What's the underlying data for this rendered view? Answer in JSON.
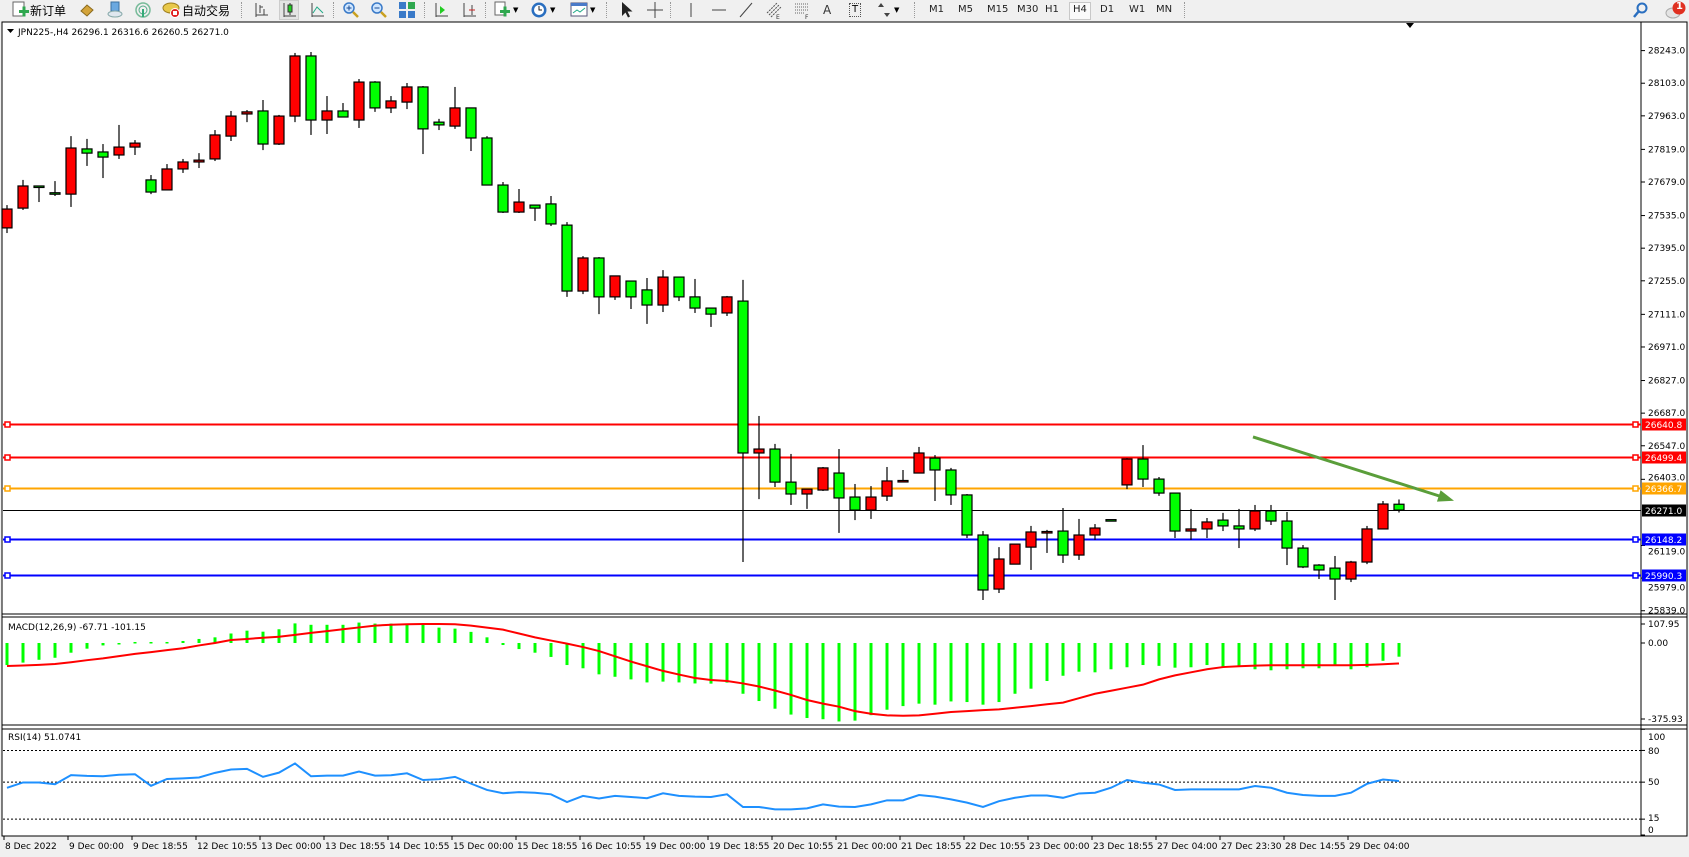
{
  "toolbar": {
    "new_order": "新订单",
    "auto_trading": "自动交易",
    "text_tool": "A",
    "text_label_tool": "T",
    "timeframes": [
      "M1",
      "M5",
      "M15",
      "M30",
      "H1",
      "H4",
      "D1",
      "W1",
      "MN"
    ],
    "active_timeframe": "H4",
    "notification_count": "1"
  },
  "chart": {
    "header": "JPN225-,H4  26296.1 26316.6 26260.5 26271.0",
    "colors": {
      "up": "#ff0000",
      "down": "#00ff00",
      "wick": "#000000",
      "background": "#ffffff"
    },
    "price_ticks": [
      "28243.0",
      "28103.0",
      "27963.0",
      "27819.0",
      "27679.0",
      "27535.0",
      "27395.0",
      "27255.0",
      "27111.0",
      "26971.0",
      "26827.0",
      "26687.0",
      "26547.0",
      "26403.0",
      "26119.0",
      "25979.0",
      "25839.0"
    ],
    "hlines": [
      {
        "price": 26640.8,
        "label": "26640.8",
        "color": "#ff0000"
      },
      {
        "price": 26499.4,
        "label": "26499.4",
        "color": "#ff0000"
      },
      {
        "price": 26366.7,
        "label": "26366.7",
        "color": "#ffa500"
      },
      {
        "price": 26148.2,
        "label": "26148.2",
        "color": "#0000ff"
      },
      {
        "price": 25990.3,
        "label": "25990.3",
        "color": "#0000ff"
      }
    ],
    "bid": {
      "price": 26271.0,
      "label": "26271.0",
      "color": "#000000"
    },
    "arrow": {
      "from_price": 26585,
      "to_price": 26311,
      "color": "#5a9e3a"
    },
    "time_labels": [
      "8 Dec 2022",
      "9 Dec 00:00",
      "9 Dec 18:55",
      "12 Dec 10:55",
      "13 Dec 00:00",
      "13 Dec 18:55",
      "14 Dec 10:55",
      "15 Dec 00:00",
      "15 Dec 18:55",
      "16 Dec 10:55",
      "19 Dec 00:00",
      "19 Dec 18:55",
      "20 Dec 10:55",
      "21 Dec 00:00",
      "21 Dec 18:55",
      "22 Dec 10:55",
      "23 Dec 00:00",
      "23 Dec 18:55",
      "27 Dec 04:00",
      "27 Dec 23:30",
      "28 Dec 14:55",
      "29 Dec 04:00"
    ]
  },
  "macd": {
    "header": "MACD(12,26,9) -67.71 -101.15",
    "ticks": [
      "107.95",
      "0.00",
      "-375.93"
    ],
    "colors": {
      "histogram": "#00ff00",
      "signal": "#ff0000"
    }
  },
  "rsi": {
    "header": "RSI(14) 51.0741",
    "ticks": [
      "100",
      "80",
      "50",
      "15",
      "0"
    ],
    "levels": [
      80,
      50,
      15
    ],
    "color": "#1e90ff"
  },
  "chart_data": {
    "type": "candlestick",
    "symbol": "JPN225-",
    "timeframe": "H4",
    "ylim": [
      25839,
      28243
    ],
    "ohlc": [
      [
        27482,
        27580,
        27460,
        27563
      ],
      [
        27567,
        27688,
        27559,
        27662
      ],
      [
        27662,
        27664,
        27593,
        27660
      ],
      [
        27633,
        27683,
        27619,
        27631
      ],
      [
        27627,
        27876,
        27572,
        27825
      ],
      [
        27821,
        27864,
        27748,
        27803
      ],
      [
        27808,
        27842,
        27696,
        27786
      ],
      [
        27795,
        27924,
        27778,
        27829
      ],
      [
        27829,
        27859,
        27795,
        27846
      ],
      [
        27688,
        27709,
        27627,
        27636
      ],
      [
        27645,
        27756,
        27645,
        27735
      ],
      [
        27735,
        27778,
        27718,
        27765
      ],
      [
        27765,
        27803,
        27739,
        27773
      ],
      [
        27778,
        27902,
        27769,
        27881
      ],
      [
        27876,
        27984,
        27855,
        27962
      ],
      [
        27971,
        27988,
        27936,
        27980
      ],
      [
        27984,
        28031,
        27816,
        27842
      ],
      [
        27842,
        27967,
        27838,
        27962
      ],
      [
        27962,
        28233,
        27936,
        28220
      ],
      [
        28220,
        28237,
        27881,
        27945
      ],
      [
        27945,
        28048,
        27885,
        27984
      ],
      [
        27984,
        28018,
        27958,
        27958
      ],
      [
        27945,
        28121,
        27911,
        28108
      ],
      [
        28108,
        28112,
        27980,
        27997
      ],
      [
        27997,
        28048,
        27975,
        28027
      ],
      [
        28022,
        28104,
        27992,
        28087
      ],
      [
        28087,
        28091,
        27799,
        27907
      ],
      [
        27936,
        27950,
        27902,
        27924
      ],
      [
        27919,
        28087,
        27907,
        27997
      ],
      [
        27997,
        27997,
        27812,
        27868
      ],
      [
        27868,
        27876,
        27666,
        27666
      ],
      [
        27666,
        27679,
        27546,
        27550
      ],
      [
        27550,
        27649,
        27546,
        27593
      ],
      [
        27580,
        27580,
        27512,
        27567
      ],
      [
        27585,
        27619,
        27490,
        27499
      ],
      [
        27494,
        27507,
        27186,
        27211
      ],
      [
        27211,
        27361,
        27198,
        27353
      ],
      [
        27353,
        27357,
        27112,
        27186
      ],
      [
        27186,
        27276,
        27173,
        27276
      ],
      [
        27254,
        27254,
        27134,
        27186
      ],
      [
        27216,
        27267,
        27070,
        27151
      ],
      [
        27151,
        27301,
        27121,
        27271
      ],
      [
        27271,
        27271,
        27168,
        27186
      ],
      [
        27186,
        27263,
        27117,
        27138
      ],
      [
        27138,
        27138,
        27057,
        27112
      ],
      [
        27117,
        27190,
        27104,
        27186
      ],
      [
        27168,
        27259,
        26048,
        26516
      ],
      [
        26516,
        26675,
        26318,
        26533
      ],
      [
        26533,
        26555,
        26370,
        26391
      ],
      [
        26391,
        26512,
        26293,
        26340
      ],
      [
        26340,
        26361,
        26276,
        26361
      ],
      [
        26357,
        26456,
        26353,
        26452
      ],
      [
        26430,
        26533,
        26173,
        26323
      ],
      [
        26327,
        26383,
        26228,
        26271
      ],
      [
        26271,
        26374,
        26233,
        26327
      ],
      [
        26331,
        26456,
        26310,
        26396
      ],
      [
        26396,
        26443,
        26394,
        26398
      ],
      [
        26430,
        26542,
        26430,
        26516
      ],
      [
        26494,
        26507,
        26310,
        26443
      ],
      [
        26443,
        26452,
        26293,
        26336
      ],
      [
        26336,
        26340,
        26151,
        26164
      ],
      [
        26164,
        26181,
        25885,
        25928
      ],
      [
        25932,
        26112,
        25915,
        26061
      ],
      [
        26039,
        26125,
        26039,
        26125
      ],
      [
        26112,
        26203,
        26014,
        26177
      ],
      [
        26177,
        26186,
        26087,
        26179
      ],
      [
        26181,
        26280,
        26044,
        26078
      ],
      [
        26078,
        26233,
        26057,
        26164
      ],
      [
        26164,
        26211,
        26143,
        26194
      ],
      [
        26230,
        26230,
        26226,
        26226
      ],
      [
        26379,
        26494,
        26361,
        26490
      ],
      [
        26490,
        26550,
        26370,
        26404
      ],
      [
        26404,
        26413,
        26332,
        26344
      ],
      [
        26344,
        26344,
        26151,
        26181
      ],
      [
        26181,
        26276,
        26143,
        26190
      ],
      [
        26190,
        26237,
        26151,
        26220
      ],
      [
        26228,
        26259,
        26181,
        26203
      ],
      [
        26203,
        26276,
        26108,
        26190
      ],
      [
        26190,
        26293,
        26181,
        26267
      ],
      [
        26267,
        26293,
        26207,
        26224
      ],
      [
        26224,
        26263,
        26035,
        26108
      ],
      [
        26108,
        26121,
        26022,
        26027
      ],
      [
        26035,
        26039,
        25975,
        26014
      ],
      [
        26022,
        26074,
        25885,
        25975
      ],
      [
        25975,
        26053,
        25962,
        26048
      ],
      [
        26048,
        26203,
        26039,
        26190
      ],
      [
        26190,
        26310,
        26190,
        26297
      ],
      [
        26296.1,
        26316.6,
        26260.5,
        26271.0
      ]
    ],
    "macd_main": [
      -109,
      -97,
      -83,
      -73,
      -48,
      -28,
      -12,
      -2,
      5,
      5,
      5,
      10,
      20,
      28,
      47,
      61,
      56,
      68,
      97,
      90,
      90,
      90,
      101,
      96,
      96,
      93,
      90,
      76,
      71,
      55,
      28,
      -10,
      -30,
      -48,
      -69,
      -109,
      -125,
      -155,
      -167,
      -180,
      -195,
      -191,
      -195,
      -200,
      -201,
      -196,
      -251,
      -287,
      -325,
      -354,
      -371,
      -377,
      -388,
      -384,
      -357,
      -330,
      -312,
      -300,
      -305,
      -289,
      -292,
      -305,
      -292,
      -251,
      -226,
      -188,
      -162,
      -142,
      -145,
      -130,
      -120,
      -109,
      -113,
      -122,
      -120,
      -109,
      -120,
      -113,
      -130,
      -135,
      -130,
      -125,
      -125,
      -113,
      -130,
      -120,
      -88,
      -67.71
    ],
    "macd_signal": [
      -114,
      -111,
      -108,
      -104,
      -95,
      -85,
      -76,
      -65,
      -54,
      -45,
      -35,
      -26,
      -12,
      0,
      15,
      20,
      26,
      31,
      40,
      50,
      59,
      68,
      77,
      86,
      90,
      93,
      94,
      94,
      93,
      86,
      76,
      66,
      47,
      28,
      12,
      -3,
      -20,
      -40,
      -66,
      -92,
      -115,
      -138,
      -156,
      -173,
      -183,
      -188,
      -200,
      -215,
      -235,
      -257,
      -282,
      -300,
      -315,
      -337,
      -350,
      -358,
      -360,
      -358,
      -350,
      -341,
      -337,
      -332,
      -328,
      -320,
      -312,
      -303,
      -295,
      -273,
      -251,
      -236,
      -221,
      -206,
      -180,
      -160,
      -145,
      -130,
      -119,
      -115,
      -112,
      -110,
      -110,
      -110,
      -110,
      -110,
      -110,
      -108,
      -105,
      -101.15
    ],
    "macd_ylim": [
      -375.93,
      107.95
    ],
    "rsi": [
      44.6,
      49.7,
      49.7,
      48,
      56.6,
      55.9,
      55.6,
      57,
      57.5,
      46.5,
      53,
      53.6,
      54.4,
      58.8,
      62,
      62.6,
      55,
      59,
      67.7,
      55.6,
      56.2,
      56.2,
      60,
      56.2,
      56.5,
      58.4,
      52,
      52.8,
      55,
      48.6,
      42.6,
      39.5,
      40.6,
      40,
      38.5,
      31.2,
      37,
      34.5,
      37,
      36,
      34.8,
      39.5,
      37,
      36.3,
      36,
      38.5,
      26.5,
      26.5,
      24.3,
      24.3,
      25.2,
      29,
      26.8,
      26.5,
      29,
      32.8,
      32.8,
      37.8,
      36.3,
      33.7,
      30.6,
      26.5,
      32,
      35.2,
      37.4,
      37.4,
      35.2,
      39.3,
      40,
      44.7,
      52,
      49.4,
      47.8,
      42.6,
      43.2,
      43.2,
      43.2,
      43.2,
      46.3,
      44.7,
      40,
      37.8,
      37,
      37,
      40,
      48.4,
      52.5,
      51.07
    ],
    "rsi_ylim": [
      0,
      100
    ]
  }
}
